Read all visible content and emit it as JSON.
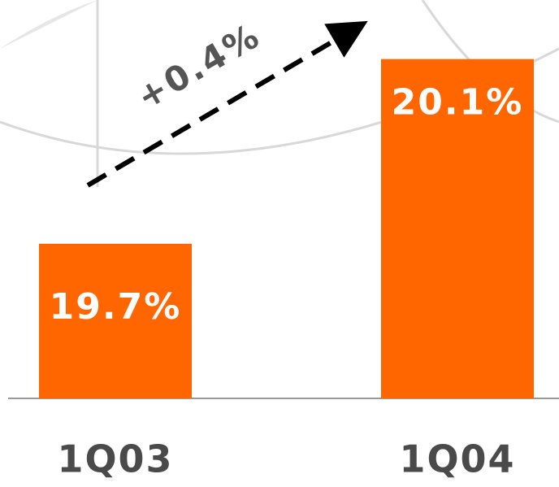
{
  "chart_data": {
    "type": "bar",
    "categories": [
      "1Q03",
      "1Q04"
    ],
    "values": [
      19.7,
      20.1
    ],
    "value_labels": [
      "19.7%",
      "20.1%"
    ],
    "color": "#ff6600",
    "ylim": [
      19.365,
      20.228
    ],
    "annotation": "+0.4%"
  }
}
